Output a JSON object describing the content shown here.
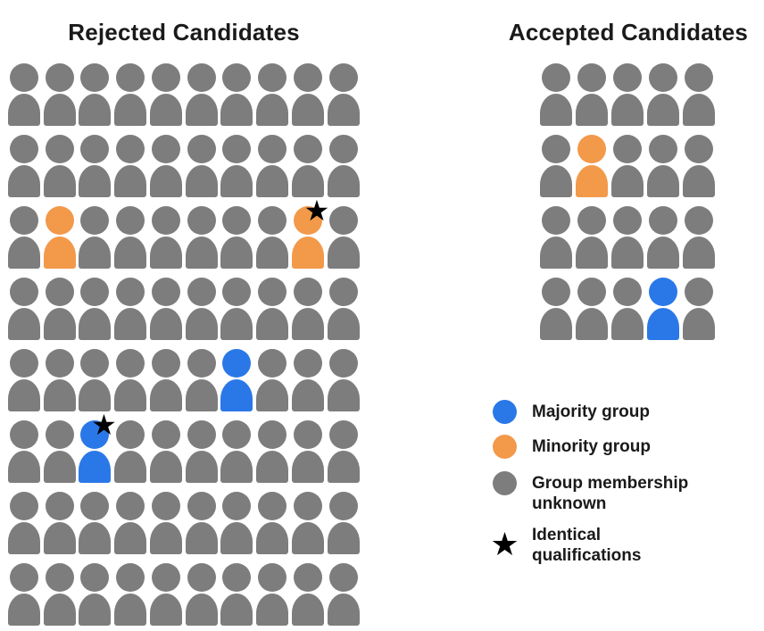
{
  "colors": {
    "majority_blue": "#2A78E8",
    "minority_orange": "#F2994A",
    "unknown_gray": "#7D7D7D",
    "star_black": "#000000",
    "text_dark": "#1A1A1A",
    "background": "#FFFFFF"
  },
  "icons": {
    "star_glyph": "★",
    "star_icon_meaning": "identical-qualifications",
    "person_icon_meaning": "candidate"
  },
  "cell_code_legend": {
    "U": "group membership unknown (gray)",
    "O": "minority group (orange)",
    "B": "majority group (blue)",
    "*": "identical qualifications star"
  },
  "rejected_panel": {
    "title": "Rejected Candidates",
    "columns": 10,
    "total_people": 80,
    "rows": [
      [
        "U",
        "U",
        "U",
        "U",
        "U",
        "U",
        "U",
        "U",
        "U",
        "U"
      ],
      [
        "U",
        "U",
        "U",
        "U",
        "U",
        "U",
        "U",
        "U",
        "U",
        "U"
      ],
      [
        "U",
        "O",
        "U",
        "U",
        "U",
        "U",
        "U",
        "U",
        "O*",
        "U"
      ],
      [
        "U",
        "U",
        "U",
        "U",
        "U",
        "U",
        "U",
        "U",
        "U",
        "U"
      ],
      [
        "U",
        "U",
        "U",
        "U",
        "U",
        "U",
        "B",
        "U",
        "U",
        "U"
      ],
      [
        "U",
        "U",
        "B*",
        "U",
        "U",
        "U",
        "U",
        "U",
        "U",
        "U"
      ],
      [
        "U",
        "U",
        "U",
        "U",
        "U",
        "U",
        "U",
        "U",
        "U",
        "U"
      ],
      [
        "U",
        "U",
        "U",
        "U",
        "U",
        "U",
        "U",
        "U",
        "U",
        "U"
      ]
    ]
  },
  "accepted_panel": {
    "title": "Accepted Candidates",
    "columns": 5,
    "total_people": 20,
    "rows": [
      [
        "U",
        "U",
        "U",
        "U",
        "U"
      ],
      [
        "U",
        "O",
        "U",
        "U",
        "U"
      ],
      [
        "U",
        "U",
        "U",
        "U",
        "U"
      ],
      [
        "U",
        "U",
        "U",
        "B",
        "U"
      ]
    ]
  },
  "legend": {
    "items": [
      {
        "swatch": "circle",
        "color": "majority_blue",
        "label": "Majority group"
      },
      {
        "swatch": "circle",
        "color": "minority_orange",
        "label": "Minority group"
      },
      {
        "swatch": "circle",
        "color": "unknown_gray",
        "label": "Group membership unknown"
      },
      {
        "swatch": "star",
        "color": "star_black",
        "label": "Identical qualifications"
      }
    ]
  }
}
